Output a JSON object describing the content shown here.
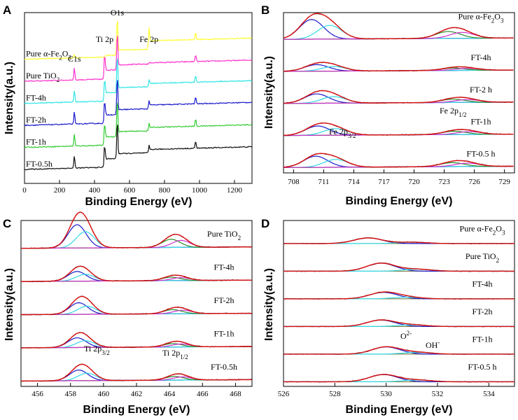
{
  "chart_data": [
    {
      "panel": "A",
      "type": "line",
      "xlabel": "Binding Energy (eV)",
      "ylabel": "Intensity(a.u.)",
      "xlim": [
        0,
        1300
      ],
      "xticks": [
        "0",
        "200",
        "400",
        "600",
        "800",
        "1000",
        "1200"
      ],
      "peak_labels": [
        "C1s",
        "Ti 2p",
        "O1s",
        "Fe 2p"
      ],
      "series": [
        {
          "name": "Pure α-Fe2O3",
          "label_main": "Pure α-Fe",
          "label_sub1": "2",
          "label_mid": "O",
          "label_sub2": "3",
          "color": "#ffff33",
          "offset": 5.0,
          "Ti": 0.0,
          "Fe": 1.0
        },
        {
          "name": "Pure TiO2",
          "label_main": "Pure TiO",
          "label_sub1": "2",
          "label_mid": "",
          "label_sub2": "",
          "color": "#ff33cc",
          "offset": 4.0,
          "Ti": 1.0,
          "Fe": 0.0
        },
        {
          "name": "FT-4h",
          "label_main": "FT-4h",
          "label_sub1": "",
          "label_mid": "",
          "label_sub2": "",
          "color": "#33e5e5",
          "offset": 3.0,
          "Ti": 0.9,
          "Fe": 0.3
        },
        {
          "name": "FT-2h",
          "label_main": "FT-2h",
          "label_sub1": "",
          "label_mid": "",
          "label_sub2": "",
          "color": "#1a1acc",
          "offset": 2.0,
          "Ti": 0.9,
          "Fe": 0.35
        },
        {
          "name": "FT-1h",
          "label_main": "FT-1h",
          "label_sub1": "",
          "label_mid": "",
          "label_sub2": "",
          "color": "#33cc33",
          "offset": 1.0,
          "Ti": 0.9,
          "Fe": 0.3
        },
        {
          "name": "FT-0.5h",
          "label_main": "FT-0.5h",
          "label_sub1": "",
          "label_mid": "",
          "label_sub2": "",
          "color": "#111111",
          "offset": 0.0,
          "Ti": 0.9,
          "Fe": 0.3
        }
      ]
    },
    {
      "panel": "B",
      "type": "line",
      "xlabel": "Binding Energy (eV)",
      "ylabel": "Intensity(a.u.)",
      "xlim": [
        707,
        730
      ],
      "xticks": [
        "708",
        "711",
        "714",
        "717",
        "720",
        "723",
        "726",
        "729"
      ],
      "annotations": [
        {
          "main": "Fe 2p",
          "sub": "3/2",
          "x": 710.9
        },
        {
          "main": "Fe 2p",
          "sub": "1/2",
          "x": 723.4
        }
      ],
      "fit_colors": [
        "#dd1111",
        "#1a1acc",
        "#33d9e6",
        "#2d8c2d",
        "#cc33cc",
        "#6b6b2a"
      ],
      "series": [
        {
          "name": "Pure α-Fe2O3",
          "label_main": "Pure α-Fe",
          "label_sub1": "2",
          "label_mid": "O",
          "label_sub2": "3",
          "offset": 4.0,
          "amp": 2.1,
          "p1": 709.8,
          "p2": 711.6,
          "p3": 723.4,
          "p4": 724.8
        },
        {
          "name": "FT-4h",
          "label_main": "FT-4h",
          "label_sub1": "",
          "label_mid": "",
          "label_sub2": "",
          "offset": 3.0,
          "amp": 0.7,
          "p1": 710.3,
          "p2": 712.0,
          "p3": 723.9,
          "p4": 725.3
        },
        {
          "name": "FT-2 h",
          "label_main": "FT-2 h",
          "label_sub1": "",
          "label_mid": "",
          "label_sub2": "",
          "offset": 2.0,
          "amp": 1.0,
          "p1": 710.3,
          "p2": 712.0,
          "p3": 723.9,
          "p4": 725.3
        },
        {
          "name": "FT-1h",
          "label_main": "FT-1h",
          "label_sub1": "",
          "label_mid": "",
          "label_sub2": "",
          "offset": 1.0,
          "amp": 1.0,
          "p1": 710.4,
          "p2": 712.2,
          "p3": 724.0,
          "p4": 725.5
        },
        {
          "name": "FT-0.5 h",
          "label_main": "FT-0.5 h",
          "label_sub1": "",
          "label_mid": "",
          "label_sub2": "",
          "offset": 0.0,
          "amp": 1.2,
          "p1": 710.2,
          "p2": 712.2,
          "p3": 723.8,
          "p4": 725.3
        }
      ]
    },
    {
      "panel": "C",
      "type": "line",
      "xlabel": "Binding Energy (eV)",
      "ylabel": "Intensity(a.u.)",
      "xlim": [
        455,
        469
      ],
      "xticks": [
        "456",
        "458",
        "460",
        "462",
        "464",
        "466",
        "468"
      ],
      "annotations": [
        {
          "main": "Ti 2p",
          "sub": "3/2",
          "x": 458.6
        },
        {
          "main": "Ti 2p",
          "sub": "1/2",
          "x": 464.3
        }
      ],
      "fit_colors": [
        "#dd1111",
        "#1a1acc",
        "#33d9e6",
        "#2d8c2d",
        "#cc33cc",
        "#6b6b2a"
      ],
      "series": [
        {
          "name": "Pure TiO2",
          "label_main": "Pure TiO",
          "label_sub1": "2",
          "label_mid": "",
          "label_sub2": "",
          "offset": 4.0,
          "amp": 2.4,
          "p1": 458.4,
          "p2": 458.9,
          "p3": 464.1,
          "p4": 464.7
        },
        {
          "name": "FT-4h",
          "label_main": "FT-4h",
          "label_sub1": "",
          "label_mid": "",
          "label_sub2": "",
          "offset": 3.0,
          "amp": 1.0,
          "p1": 458.4,
          "p2": 458.9,
          "p3": 464.1,
          "p4": 464.7
        },
        {
          "name": "FT-2h",
          "label_main": "FT-2h",
          "label_sub1": "",
          "label_mid": "",
          "label_sub2": "",
          "offset": 2.0,
          "amp": 1.2,
          "p1": 458.5,
          "p2": 459.0,
          "p3": 464.2,
          "p4": 464.8
        },
        {
          "name": "FT-1h",
          "label_main": "FT-1h",
          "label_sub1": "",
          "label_mid": "",
          "label_sub2": "",
          "offset": 1.0,
          "amp": 1.0,
          "p1": 458.4,
          "p2": 458.9,
          "p3": 464.2,
          "p4": 464.7
        },
        {
          "name": "FT-0.5h",
          "label_main": "FT-0.5h",
          "label_sub1": "",
          "label_mid": "",
          "label_sub2": "",
          "offset": 0.0,
          "amp": 1.1,
          "p1": 458.5,
          "p2": 459.0,
          "p3": 464.3,
          "p4": 464.8
        }
      ]
    },
    {
      "panel": "D",
      "type": "line",
      "xlabel": "Binding Energy (eV)",
      "ylabel": "Intensity(a.u.)",
      "xlim": [
        526,
        535
      ],
      "xticks": [
        "526",
        "528",
        "530",
        "532",
        "534"
      ],
      "annotations": [
        {
          "main": "O",
          "sup": "2-",
          "x": 530.3
        },
        {
          "main": "OH",
          "sup": "-",
          "x": 531.2
        }
      ],
      "fit_colors": [
        "#dd1111",
        "#1a1acc",
        "#33d9e6",
        "#2d8c2d",
        "#cc33cc",
        "#6b6b2a"
      ],
      "series": [
        {
          "name": "Pure α-Fe2O3",
          "label_main": "Pure α-Fe",
          "label_sub1": "2",
          "label_mid": "O",
          "label_sub2": "3",
          "offset": 5.0,
          "amp": 0.7,
          "p1": 529.3,
          "p2": 531.0
        },
        {
          "name": "Pure TiO2",
          "label_main": "Pure TiO",
          "label_sub1": "2",
          "label_mid": "",
          "label_sub2": "",
          "offset": 4.0,
          "amp": 1.0,
          "p1": 529.8,
          "p2": 531.2
        },
        {
          "name": "FT-4h",
          "label_main": "FT-4h",
          "label_sub1": "",
          "label_mid": "",
          "label_sub2": "",
          "offset": 3.0,
          "amp": 0.8,
          "p1": 529.9,
          "p2": 530.8
        },
        {
          "name": "FT-2h",
          "label_main": "FT-2h",
          "label_sub1": "",
          "label_mid": "",
          "label_sub2": "",
          "offset": 2.0,
          "amp": 0.8,
          "p1": 529.8,
          "p2": 531.0
        },
        {
          "name": "FT-1h",
          "label_main": "FT-1h",
          "label_sub1": "",
          "label_mid": "",
          "label_sub2": "",
          "offset": 1.0,
          "amp": 0.9,
          "p1": 530.0,
          "p2": 531.2
        },
        {
          "name": "FT-0.5 h",
          "label_main": "FT-0.5 h",
          "label_sub1": "",
          "label_mid": "",
          "label_sub2": "",
          "offset": 0.0,
          "amp": 0.9,
          "p1": 529.9,
          "p2": 531.2
        }
      ]
    }
  ]
}
